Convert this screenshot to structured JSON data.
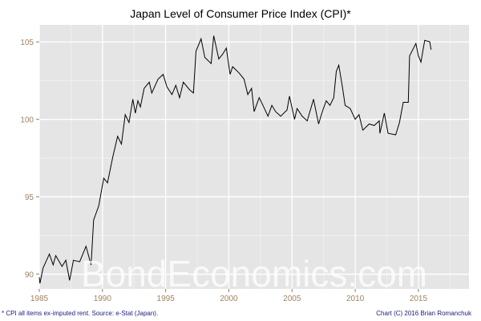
{
  "chart_data": {
    "type": "line",
    "title": "Japan Level of Consumer Price Index (CPI)*",
    "xlabel": "",
    "ylabel": "",
    "xlim": [
      1985,
      2019
    ],
    "ylim": [
      89.05,
      106.1
    ],
    "grid": true,
    "x_ticks": [
      "1985",
      "1990",
      "1995",
      "2000",
      "2005",
      "2010",
      "2015"
    ],
    "y_ticks": [
      "90",
      "95",
      "100",
      "105"
    ],
    "series": [
      {
        "color": "#000000",
        "x": [
          1985.0,
          1985.05,
          1985.3,
          1985.8,
          1986.1,
          1986.3,
          1986.8,
          1987.1,
          1987.4,
          1987.7,
          1988.2,
          1988.7,
          1989.1,
          1989.3,
          1989.7,
          1990.1,
          1990.4,
          1990.8,
          1991.2,
          1991.5,
          1991.8,
          1992.1,
          1992.4,
          1992.6,
          1992.8,
          1993.0,
          1993.3,
          1993.7,
          1993.9,
          1994.4,
          1994.8,
          1995.1,
          1995.5,
          1995.8,
          1996.1,
          1996.4,
          1996.9,
          1997.2,
          1997.4,
          1997.8,
          1998.1,
          1998.6,
          1998.8,
          1999.2,
          1999.5,
          1999.8,
          2000.1,
          2000.3,
          2000.8,
          2001.2,
          2001.5,
          2001.8,
          2002.0,
          2002.4,
          2002.7,
          2003.1,
          2003.4,
          2003.7,
          2004.1,
          2004.6,
          2004.8,
          2005.2,
          2005.4,
          2005.8,
          2006.2,
          2006.7,
          2007.1,
          2007.4,
          2007.7,
          2008.0,
          2008.3,
          2008.5,
          2008.7,
          2009.0,
          2009.2,
          2009.6,
          2010.0,
          2010.3,
          2010.6,
          2011.1,
          2011.5,
          2011.9,
          2011.95,
          2012.3,
          2012.6,
          2013.2,
          2013.5,
          2013.8,
          2014.2,
          2014.3,
          2014.8,
          2015.0,
          2015.2,
          2015.5,
          2015.9,
          2016.0
        ],
        "y": [
          89.8,
          89.4,
          90.4,
          91.3,
          90.6,
          91.2,
          90.5,
          90.9,
          89.6,
          90.9,
          90.8,
          91.8,
          90.6,
          93.5,
          94.4,
          96.2,
          95.9,
          97.5,
          98.9,
          98.4,
          100.3,
          99.8,
          101.3,
          100.4,
          101.2,
          100.8,
          102.0,
          102.4,
          101.7,
          102.6,
          102.9,
          102.1,
          101.6,
          102.2,
          101.4,
          102.4,
          101.9,
          101.7,
          104.4,
          105.2,
          104.0,
          103.6,
          105.4,
          103.9,
          104.2,
          104.6,
          102.9,
          103.4,
          103.0,
          102.6,
          101.6,
          102.0,
          100.5,
          101.4,
          100.9,
          100.2,
          100.9,
          100.5,
          100.2,
          100.6,
          101.5,
          100.0,
          100.7,
          100.2,
          99.9,
          101.3,
          99.7,
          100.5,
          101.2,
          100.9,
          101.4,
          103.1,
          103.5,
          102.0,
          100.9,
          100.7,
          100.0,
          100.3,
          99.3,
          99.7,
          99.6,
          99.9,
          99.1,
          100.4,
          99.1,
          99.0,
          99.8,
          101.1,
          101.1,
          104.1,
          104.9,
          104.1,
          103.7,
          105.1,
          105.0,
          104.5
        ]
      }
    ],
    "footnote": "* CPI all items ex-imputed rent. Source: e-Stat (Japan).",
    "credit": "Chart (C) 2016 Brian Romanchuk",
    "watermark": "BondEconomics.com"
  }
}
